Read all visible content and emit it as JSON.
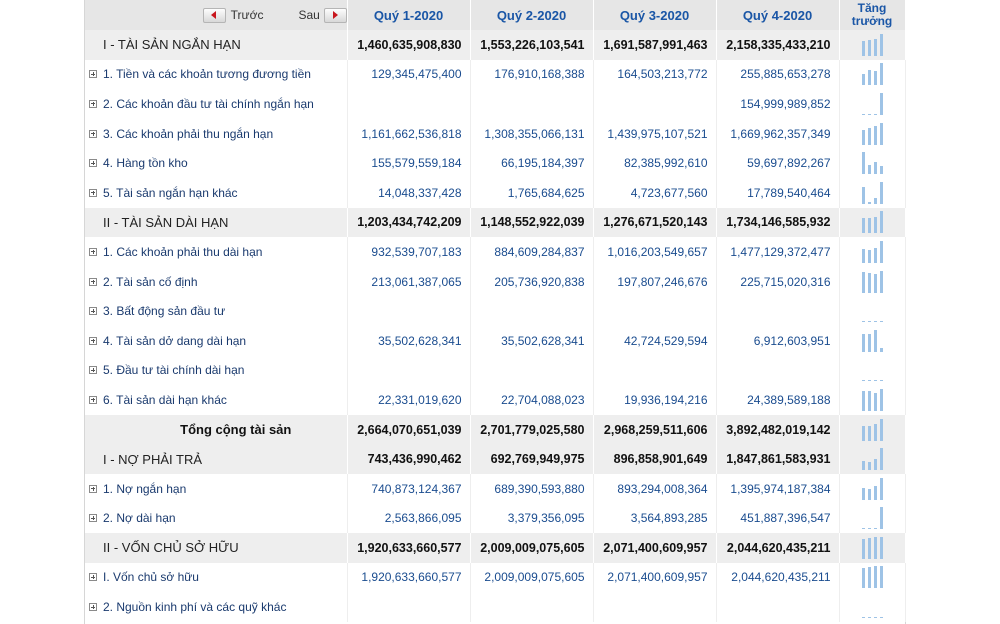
{
  "nav": {
    "prev_label": "Trước",
    "next_label": "Sau"
  },
  "columns": [
    "Quý 1-2020",
    "Quý 2-2020",
    "Quý 3-2020",
    "Quý 4-2020"
  ],
  "growth_header": "Tăng trưởng",
  "colors": {
    "header_bg": "#e6e6e6",
    "section_bg": "#eeeeee",
    "link": "#1a56a6",
    "spark": "#9ec3e6"
  },
  "rows": [
    {
      "type": "hd",
      "label": "I - TÀI SẢN NGẮN HẠN",
      "values": [
        "1,460,635,908,830",
        "1,553,226,103,541",
        "1,691,587,991,463",
        "2,158,335,433,210"
      ],
      "spark": [
        0.68,
        0.72,
        0.78,
        1.0
      ]
    },
    {
      "type": "item",
      "label": "1. Tiền và các khoản tương đương tiền",
      "values": [
        "129,345,475,400",
        "176,910,168,388",
        "164,503,213,772",
        "255,885,653,278"
      ],
      "spark": [
        0.5,
        0.69,
        0.64,
        1.0
      ]
    },
    {
      "type": "item",
      "label": "2. Các khoản đầu tư tài chính ngắn hạn",
      "values": [
        "",
        "",
        "",
        "154,999,989,852"
      ],
      "spark": [
        0,
        0,
        0,
        1.0
      ]
    },
    {
      "type": "item",
      "label": "3. Các khoản phải thu ngắn hạn",
      "values": [
        "1,161,662,536,818",
        "1,308,355,066,131",
        "1,439,975,107,521",
        "1,669,962,357,349"
      ],
      "spark": [
        0.7,
        0.78,
        0.86,
        1.0
      ]
    },
    {
      "type": "item",
      "label": "4. Hàng tồn kho",
      "values": [
        "155,579,559,184",
        "66,195,184,397",
        "82,385,992,610",
        "59,697,892,267"
      ],
      "spark": [
        1.0,
        0.43,
        0.53,
        0.38
      ]
    },
    {
      "type": "item",
      "label": "5. Tài sản ngắn hạn khác",
      "values": [
        "14,048,337,428",
        "1,765,684,625",
        "4,723,677,560",
        "17,789,540,464"
      ],
      "spark": [
        0.79,
        0.1,
        0.27,
        1.0
      ]
    },
    {
      "type": "hd",
      "label": "II - TÀI SẢN DÀI HẠN",
      "values": [
        "1,203,434,742,209",
        "1,148,552,922,039",
        "1,276,671,520,143",
        "1,734,146,585,932"
      ],
      "spark": [
        0.69,
        0.66,
        0.74,
        1.0
      ]
    },
    {
      "type": "item",
      "label": "1. Các khoản phải thu dài hạn",
      "values": [
        "932,539,707,183",
        "884,609,284,837",
        "1,016,203,549,657",
        "1,477,129,372,477"
      ],
      "spark": [
        0.63,
        0.6,
        0.69,
        1.0
      ]
    },
    {
      "type": "item",
      "label": "2. Tài sản cố định",
      "values": [
        "213,061,387,065",
        "205,736,920,838",
        "197,807,246,676",
        "225,715,020,316"
      ],
      "spark": [
        0.94,
        0.91,
        0.88,
        1.0
      ]
    },
    {
      "type": "item",
      "label": "3. Bất động sản đầu tư",
      "values": [
        "",
        "",
        "",
        ""
      ],
      "spark": [
        0,
        0,
        0,
        0
      ]
    },
    {
      "type": "item",
      "label": "4. Tài sản dở dang dài hạn",
      "values": [
        "35,502,628,341",
        "35,502,628,341",
        "42,724,529,594",
        "6,912,603,951"
      ],
      "spark": [
        0.83,
        0.83,
        1.0,
        0.16
      ]
    },
    {
      "type": "item",
      "label": "5. Đầu tư tài chính dài hạn",
      "values": [
        "",
        "",
        "",
        ""
      ],
      "spark": [
        0,
        0,
        0,
        0
      ]
    },
    {
      "type": "item",
      "label": "6. Tài sản dài hạn khác",
      "values": [
        "22,331,019,620",
        "22,704,088,023",
        "19,936,194,216",
        "24,389,589,188"
      ],
      "spark": [
        0.92,
        0.93,
        0.82,
        1.0
      ]
    },
    {
      "type": "total",
      "label": "Tổng cộng tài sản",
      "values": [
        "2,664,070,651,039",
        "2,701,779,025,580",
        "2,968,259,511,606",
        "3,892,482,019,142"
      ],
      "spark": [
        0.68,
        0.69,
        0.76,
        1.0
      ]
    },
    {
      "type": "hd",
      "label": "I - NỢ PHẢI TRẢ",
      "values": [
        "743,436,990,462",
        "692,769,949,975",
        "896,858,901,649",
        "1,847,861,583,931"
      ],
      "spark": [
        0.4,
        0.37,
        0.49,
        1.0
      ]
    },
    {
      "type": "item",
      "label": "1. Nợ ngắn hạn",
      "values": [
        "740,873,124,367",
        "689,390,593,880",
        "893,294,008,364",
        "1,395,974,187,384"
      ],
      "spark": [
        0.53,
        0.49,
        0.64,
        1.0
      ]
    },
    {
      "type": "item",
      "label": "2. Nợ dài hạn",
      "values": [
        "2,563,866,095",
        "3,379,356,095",
        "3,564,893,285",
        "451,887,396,547"
      ],
      "spark": [
        0.01,
        0.01,
        0.01,
        1.0
      ]
    },
    {
      "type": "hd",
      "label": "II - VỐN CHỦ SỞ HỮU",
      "values": [
        "1,920,633,660,577",
        "2,009,009,075,605",
        "2,071,400,609,957",
        "2,044,620,435,211"
      ],
      "spark": [
        0.93,
        0.97,
        1.0,
        0.99
      ]
    },
    {
      "type": "item",
      "label": "I. Vốn chủ sở hữu",
      "values": [
        "1,920,633,660,577",
        "2,009,009,075,605",
        "2,071,400,609,957",
        "2,044,620,435,211"
      ],
      "spark": [
        0.93,
        0.97,
        1.0,
        0.99
      ]
    },
    {
      "type": "item",
      "label": "2. Nguồn kinh phí và các quỹ khác",
      "values": [
        "",
        "",
        "",
        ""
      ],
      "spark": [
        0,
        0,
        0,
        0
      ]
    }
  ]
}
